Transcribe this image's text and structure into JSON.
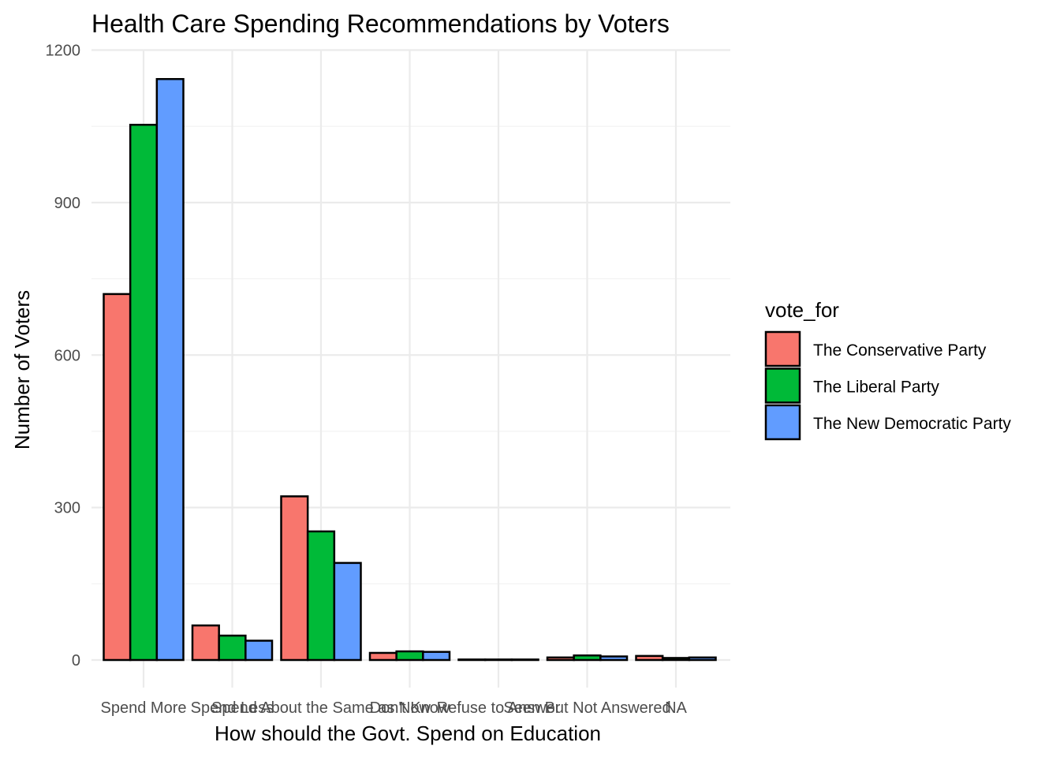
{
  "chart_data": {
    "type": "bar",
    "title": "Health Care Spending Recommendations by Voters",
    "xlabel": "How should the Govt. Spend on Education",
    "ylabel": "Number of Voters",
    "ylim": [
      0,
      1200
    ],
    "yticks": [
      0,
      300,
      600,
      900,
      1200
    ],
    "grid": true,
    "legend_position": "right",
    "legend_title": "vote_for",
    "categories": [
      "Spend More",
      "Spend Less",
      "Spend About the Same as Now",
      "Don't Know",
      "Refuse to Answer",
      "Seen But Not Answered",
      "NA"
    ],
    "series": [
      {
        "name": "The Conservative Party",
        "color": "#F8766D",
        "values": [
          720,
          68,
          322,
          14,
          1,
          5,
          8
        ]
      },
      {
        "name": "The Liberal Party",
        "color": "#00BA38",
        "values": [
          1053,
          48,
          253,
          17,
          1,
          9,
          4
        ]
      },
      {
        "name": "The New Democratic Party",
        "color": "#619CFF",
        "values": [
          1143,
          38,
          191,
          16,
          1,
          7,
          5
        ]
      }
    ]
  }
}
